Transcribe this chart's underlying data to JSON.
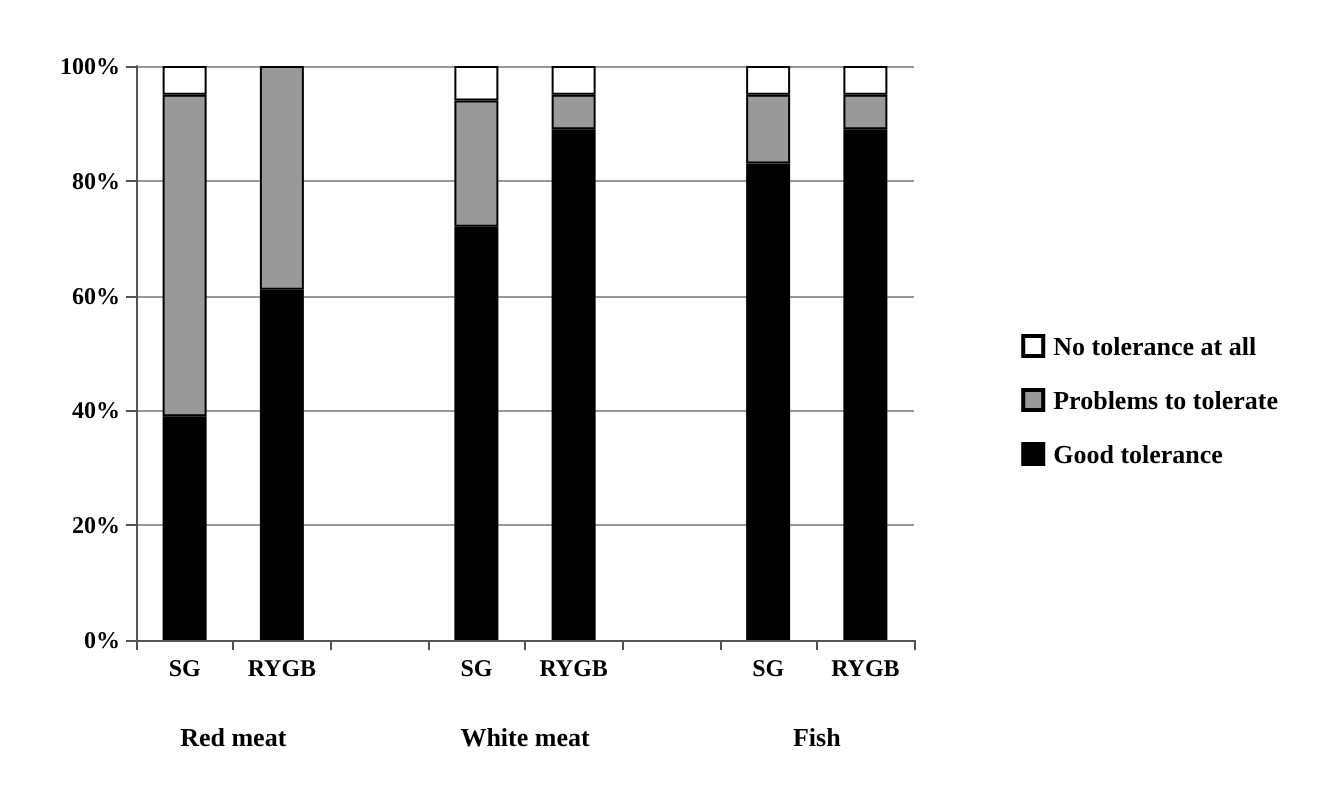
{
  "chart_data": {
    "type": "bar",
    "stacked": true,
    "categories": [
      "SG",
      "RYGB",
      null,
      "SG",
      "RYGB",
      null,
      "SG",
      "RYGB"
    ],
    "series": [
      {
        "name": "Good tolerance",
        "color": "#000000",
        "values": [
          39,
          61,
          null,
          72,
          89,
          null,
          83,
          89
        ]
      },
      {
        "name": "Problems to tolerate",
        "color": "#999999",
        "values": [
          56,
          39,
          null,
          22,
          6,
          null,
          12,
          6
        ]
      },
      {
        "name": "No tolerance at all",
        "color": "#ffffff",
        "values": [
          5,
          0,
          null,
          6,
          5,
          null,
          5,
          5
        ]
      }
    ],
    "ylim": [
      0,
      100
    ],
    "yticks": [
      {
        "value": 0,
        "label": "0%"
      },
      {
        "value": 20,
        "label": "20%"
      },
      {
        "value": 40,
        "label": "40%"
      },
      {
        "value": 60,
        "label": "60%"
      },
      {
        "value": 80,
        "label": "80%"
      },
      {
        "value": 100,
        "label": "100%"
      }
    ],
    "grid": "y",
    "legend": "right",
    "annotations": [
      "Red meat",
      "White meat",
      "Fish"
    ]
  }
}
